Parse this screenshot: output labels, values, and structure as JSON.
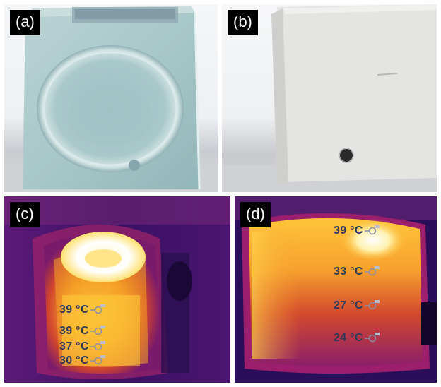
{
  "panels": [
    {
      "label": "(a)"
    },
    {
      "label": "(b)"
    },
    {
      "label": "(c)"
    },
    {
      "label": "(d)"
    }
  ],
  "panel_c_readings": [
    "39 °C",
    "39 °C",
    "37 °C",
    "30 °C"
  ],
  "panel_d_readings": [
    "39 °C",
    "33 °C",
    "27 °C",
    "24 °C"
  ],
  "colors": {
    "thermal_hot": "#ffffff",
    "thermal_warm": "#ffd23a",
    "thermal_mid": "#f07a1c",
    "thermal_cool": "#b0196e",
    "thermal_cold": "#2a0d58",
    "reading_text": "#2d3a59"
  }
}
